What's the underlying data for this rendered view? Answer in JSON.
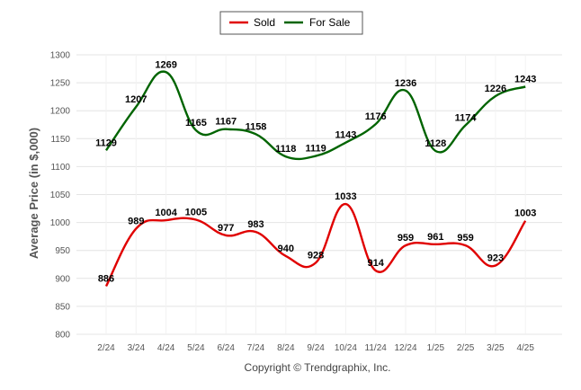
{
  "chart_data": {
    "type": "line",
    "categories": [
      "2/24",
      "3/24",
      "4/24",
      "5/24",
      "6/24",
      "7/24",
      "8/24",
      "9/24",
      "10/24",
      "11/24",
      "12/24",
      "1/25",
      "2/25",
      "3/25",
      "4/25"
    ],
    "series": [
      {
        "name": "Sold",
        "color": "#e00000",
        "values": [
          886,
          989,
          1004,
          1005,
          977,
          983,
          940,
          928,
          1033,
          914,
          959,
          961,
          959,
          923,
          1003
        ]
      },
      {
        "name": "For Sale",
        "color": "#006400",
        "values": [
          1129,
          1207,
          1269,
          1165,
          1167,
          1158,
          1118,
          1119,
          1143,
          1176,
          1236,
          1128,
          1174,
          1226,
          1243
        ]
      }
    ],
    "ylabel": "Average Price (in $,000)",
    "ylim": [
      800,
      1300
    ],
    "yticks": [
      800,
      850,
      900,
      950,
      1000,
      1050,
      1100,
      1150,
      1200,
      1250,
      1300
    ],
    "grid": true,
    "legend_position": "top-center"
  },
  "credit": "Copyright © Trendgraphix, Inc."
}
